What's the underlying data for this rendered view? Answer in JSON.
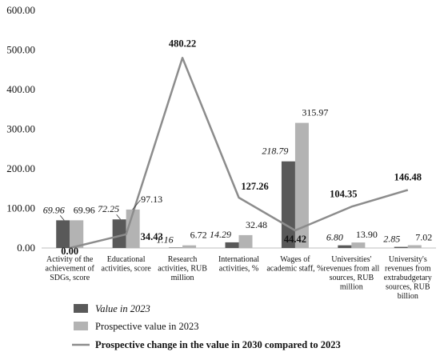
{
  "chart_data": {
    "type": "bar",
    "categories": [
      [
        "Activity of the",
        "achievement of",
        "SDGs, score"
      ],
      [
        "Educational",
        "activities, score"
      ],
      [
        "Research",
        "activities, RUB",
        "million"
      ],
      [
        "International",
        "activities, %"
      ],
      [
        "Wages of",
        "academic staff, %"
      ],
      [
        "Universities'",
        "revenues from all",
        "sources, RUB",
        "million"
      ],
      [
        "University's",
        "revenues from",
        "extrabudgetary",
        "sources, RUB",
        "billion"
      ]
    ],
    "series": [
      {
        "name": "Value in 2023",
        "kind": "bar",
        "color": "#595959",
        "values": [
          69.96,
          72.25,
          1.16,
          14.29,
          218.79,
          6.8,
          2.85
        ],
        "labels": [
          "69.96",
          "72.25",
          "1.16",
          "14.29",
          "218.79",
          "6.80",
          "2.85"
        ]
      },
      {
        "name": "Prospective value in 2023",
        "kind": "bar",
        "color": "#b3b3b3",
        "values": [
          69.96,
          97.13,
          6.72,
          32.48,
          315.97,
          13.9,
          7.02
        ],
        "labels": [
          "69.96",
          "97.13",
          "6.72",
          "32.48",
          "315.97",
          "13.90",
          "7.02"
        ]
      },
      {
        "name": "Prospective change in the value in 2030 compared to 2023",
        "kind": "line",
        "color": "#8c8c8c",
        "values": [
          0.0,
          34.43,
          480.22,
          127.26,
          44.42,
          104.35,
          146.48
        ],
        "labels": [
          "0.00",
          "34.43",
          "480.22",
          "127.26",
          "44.42",
          "104.35",
          "146.48"
        ]
      }
    ],
    "yticks": [
      "0.00",
      "100.00",
      "200.00",
      "300.00",
      "400.00",
      "500.00",
      "600.00"
    ],
    "ylim": [
      0,
      600
    ],
    "grid": false,
    "legend": "bottom-left",
    "title": "",
    "xlabel": "",
    "ylabel": ""
  }
}
